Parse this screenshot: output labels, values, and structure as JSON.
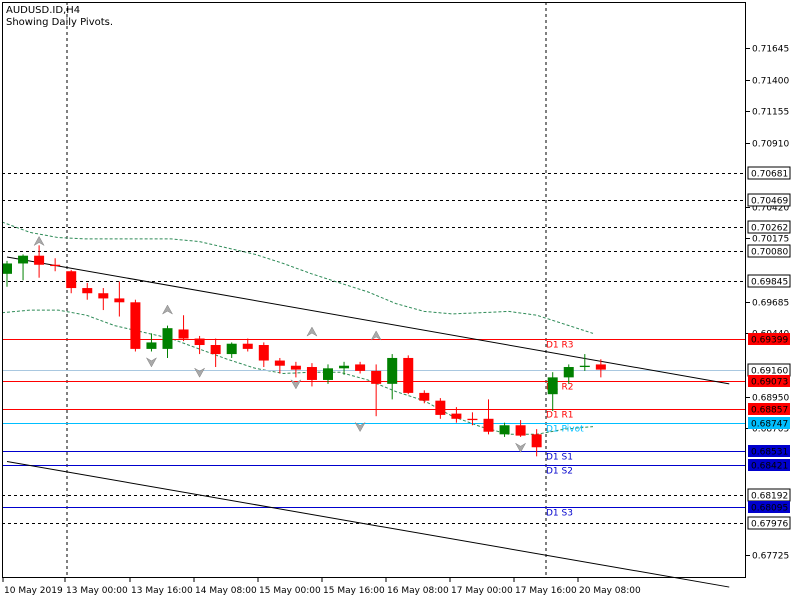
{
  "header": {
    "symbol_label": "AUDUSD.ID,H4",
    "subtitle": "Showing Daily Pivots."
  },
  "colors": {
    "background": "#ffffff",
    "bull": "#008000",
    "bear": "#ff0000",
    "axis_text": "#000000",
    "grid": "#000000",
    "pivot": "#00bfff",
    "resistance": "#ff0000",
    "support": "#0000cd",
    "envelope": "#2e8b57",
    "channel": "#000000",
    "fractal": "#a9a9a9",
    "tag_red_bg": "#ff0000",
    "tag_cyan_bg": "#00bfff",
    "tag_blue_bg": "#0000cd",
    "tag_black_bg": "#000000"
  },
  "chart_data": {
    "type": "candlestick",
    "ylim": [
      0.6755,
      0.72
    ],
    "y_ticks": [
      "0.71645",
      "0.71400",
      "0.71155",
      "0.70910",
      "0.70420",
      "0.70175",
      "0.69685",
      "0.69440",
      "0.68950",
      "0.68705",
      "0.67725"
    ],
    "x_ticks": [
      "10 May 2019",
      "13 May 00:00",
      "13 May 16:00",
      "14 May 08:00",
      "15 May 00:00",
      "15 May 16:00",
      "16 May 08:00",
      "17 May 00:00",
      "17 May 16:00",
      "20 May 08:00"
    ],
    "candles": [
      {
        "o": 0.699,
        "h": 0.7,
        "l": 0.698,
        "c": 0.6998
      },
      {
        "o": 0.6998,
        "h": 0.7005,
        "l": 0.6985,
        "c": 0.7004
      },
      {
        "o": 0.7004,
        "h": 0.7012,
        "l": 0.6987,
        "c": 0.6997
      },
      {
        "o": 0.6997,
        "h": 0.7002,
        "l": 0.6992,
        "c": 0.6996
      },
      {
        "o": 0.6992,
        "h": 0.6993,
        "l": 0.6975,
        "c": 0.6979
      },
      {
        "o": 0.6979,
        "h": 0.6983,
        "l": 0.697,
        "c": 0.6975
      },
      {
        "o": 0.6975,
        "h": 0.6979,
        "l": 0.6962,
        "c": 0.6971
      },
      {
        "o": 0.6971,
        "h": 0.6984,
        "l": 0.6957,
        "c": 0.6968
      },
      {
        "o": 0.6968,
        "h": 0.697,
        "l": 0.693,
        "c": 0.6932
      },
      {
        "o": 0.6932,
        "h": 0.6944,
        "l": 0.693,
        "c": 0.6937
      },
      {
        "o": 0.6932,
        "h": 0.695,
        "l": 0.6925,
        "c": 0.6948
      },
      {
        "o": 0.6947,
        "h": 0.6958,
        "l": 0.6938,
        "c": 0.694
      },
      {
        "o": 0.694,
        "h": 0.6942,
        "l": 0.6928,
        "c": 0.6935
      },
      {
        "o": 0.6935,
        "h": 0.694,
        "l": 0.6918,
        "c": 0.6928
      },
      {
        "o": 0.6928,
        "h": 0.6937,
        "l": 0.6925,
        "c": 0.6936
      },
      {
        "o": 0.6936,
        "h": 0.694,
        "l": 0.693,
        "c": 0.6932
      },
      {
        "o": 0.6935,
        "h": 0.6937,
        "l": 0.6918,
        "c": 0.6923
      },
      {
        "o": 0.6923,
        "h": 0.6925,
        "l": 0.6913,
        "c": 0.6919
      },
      {
        "o": 0.6919,
        "h": 0.6922,
        "l": 0.691,
        "c": 0.6916
      },
      {
        "o": 0.6918,
        "h": 0.6921,
        "l": 0.6903,
        "c": 0.6908
      },
      {
        "o": 0.6908,
        "h": 0.692,
        "l": 0.6905,
        "c": 0.6917
      },
      {
        "o": 0.6917,
        "h": 0.6922,
        "l": 0.6912,
        "c": 0.6919
      },
      {
        "o": 0.692,
        "h": 0.6922,
        "l": 0.6913,
        "c": 0.6915
      },
      {
        "o": 0.6915,
        "h": 0.692,
        "l": 0.688,
        "c": 0.6905
      },
      {
        "o": 0.6905,
        "h": 0.6928,
        "l": 0.6893,
        "c": 0.6925
      },
      {
        "o": 0.6925,
        "h": 0.6927,
        "l": 0.6897,
        "c": 0.6898
      },
      {
        "o": 0.6898,
        "h": 0.69,
        "l": 0.689,
        "c": 0.6892
      },
      {
        "o": 0.6892,
        "h": 0.6894,
        "l": 0.6878,
        "c": 0.6881
      },
      {
        "o": 0.6882,
        "h": 0.6887,
        "l": 0.6875,
        "c": 0.6878
      },
      {
        "o": 0.6878,
        "h": 0.6883,
        "l": 0.6873,
        "c": 0.6877
      },
      {
        "o": 0.6878,
        "h": 0.6893,
        "l": 0.6866,
        "c": 0.6868
      },
      {
        "o": 0.6866,
        "h": 0.6875,
        "l": 0.6864,
        "c": 0.6873
      },
      {
        "o": 0.6873,
        "h": 0.6877,
        "l": 0.6864,
        "c": 0.6865
      },
      {
        "o": 0.6866,
        "h": 0.687,
        "l": 0.6849,
        "c": 0.6856
      },
      {
        "o": 0.6897,
        "h": 0.6914,
        "l": 0.6884,
        "c": 0.691
      },
      {
        "o": 0.691,
        "h": 0.692,
        "l": 0.6905,
        "c": 0.6918
      },
      {
        "o": 0.6918,
        "h": 0.6928,
        "l": 0.6915,
        "c": 0.6919
      },
      {
        "o": 0.692,
        "h": 0.6924,
        "l": 0.691,
        "c": 0.6916
      }
    ],
    "levels": [
      {
        "label": "D1 R3",
        "value": 0.69399,
        "kind": "resistance"
      },
      {
        "label": "D1 R2",
        "value": 0.69073,
        "kind": "resistance"
      },
      {
        "label": "D1 R1",
        "value": 0.68857,
        "kind": "resistance"
      },
      {
        "label": "D1 Pivot",
        "value": 0.68747,
        "kind": "pivot"
      },
      {
        "label": "D1 S1",
        "value": 0.68531,
        "kind": "support"
      },
      {
        "label": "D1 S2",
        "value": 0.68421,
        "kind": "support"
      },
      {
        "label": "D1 S3",
        "value": 0.68095,
        "kind": "support"
      }
    ],
    "dashed_levels": [
      0.70681,
      0.70469,
      0.70262,
      0.7008,
      0.69845,
      0.68192,
      0.67976
    ],
    "price_tags": [
      {
        "text": "0.70681",
        "value": 0.70681,
        "style": "black"
      },
      {
        "text": "0.70469",
        "value": 0.70469,
        "style": "black"
      },
      {
        "text": "0.70262",
        "value": 0.70262,
        "style": "black"
      },
      {
        "text": "0.70080",
        "value": 0.7008,
        "style": "black"
      },
      {
        "text": "0.69845",
        "value": 0.69845,
        "style": "black"
      },
      {
        "text": "0.69399",
        "value": 0.69399,
        "style": "red"
      },
      {
        "text": "0.69160",
        "value": 0.6916,
        "style": "current"
      },
      {
        "text": "0.69073",
        "value": 0.69073,
        "style": "red"
      },
      {
        "text": "0.68857",
        "value": 0.68857,
        "style": "red"
      },
      {
        "text": "0.68747",
        "value": 0.68747,
        "style": "cyan"
      },
      {
        "text": "0.68531",
        "value": 0.68531,
        "style": "blue"
      },
      {
        "text": "0.68421",
        "value": 0.68421,
        "style": "blue"
      },
      {
        "text": "0.68192",
        "value": 0.68192,
        "style": "black"
      },
      {
        "text": "0.68095",
        "value": 0.68095,
        "style": "blue"
      },
      {
        "text": "0.67976",
        "value": 0.67976,
        "style": "black"
      }
    ],
    "current_price": 0.6916,
    "channel_lines": [
      {
        "from": [
          0,
          0.7003
        ],
        "to": [
          45,
          0.6905
        ]
      },
      {
        "from": [
          0,
          0.6845
        ],
        "to": [
          45,
          0.6748
        ]
      }
    ],
    "envelope_upper": [
      0.703,
      0.7022,
      0.7018,
      0.7017,
      0.7017,
      0.7017,
      0.7017,
      0.7015,
      0.701,
      0.7005,
      0.6998,
      0.699,
      0.6983,
      0.6976,
      0.6967,
      0.6961,
      0.6959,
      0.696,
      0.6961,
      0.6958,
      0.6951,
      0.6944
    ],
    "envelope_lower": [
      0.696,
      0.6962,
      0.6962,
      0.6958,
      0.695,
      0.6945,
      0.694,
      0.6932,
      0.6924,
      0.6917,
      0.6913,
      0.6914,
      0.6914,
      0.6908,
      0.6899,
      0.6892,
      0.688,
      0.6872,
      0.6866,
      0.6866,
      0.687,
      0.6872
    ],
    "fractals_up": [
      {
        "i": 2,
        "value": 0.7015
      },
      {
        "i": 10,
        "value": 0.6962
      },
      {
        "i": 19,
        "value": 0.6945
      },
      {
        "i": 23,
        "value": 0.6942
      }
    ],
    "fractals_down": [
      {
        "i": 9,
        "value": 0.6922
      },
      {
        "i": 12,
        "value": 0.6914
      },
      {
        "i": 18,
        "value": 0.6905
      },
      {
        "i": 22,
        "value": 0.6872
      },
      {
        "i": 32,
        "value": 0.6856
      }
    ]
  }
}
